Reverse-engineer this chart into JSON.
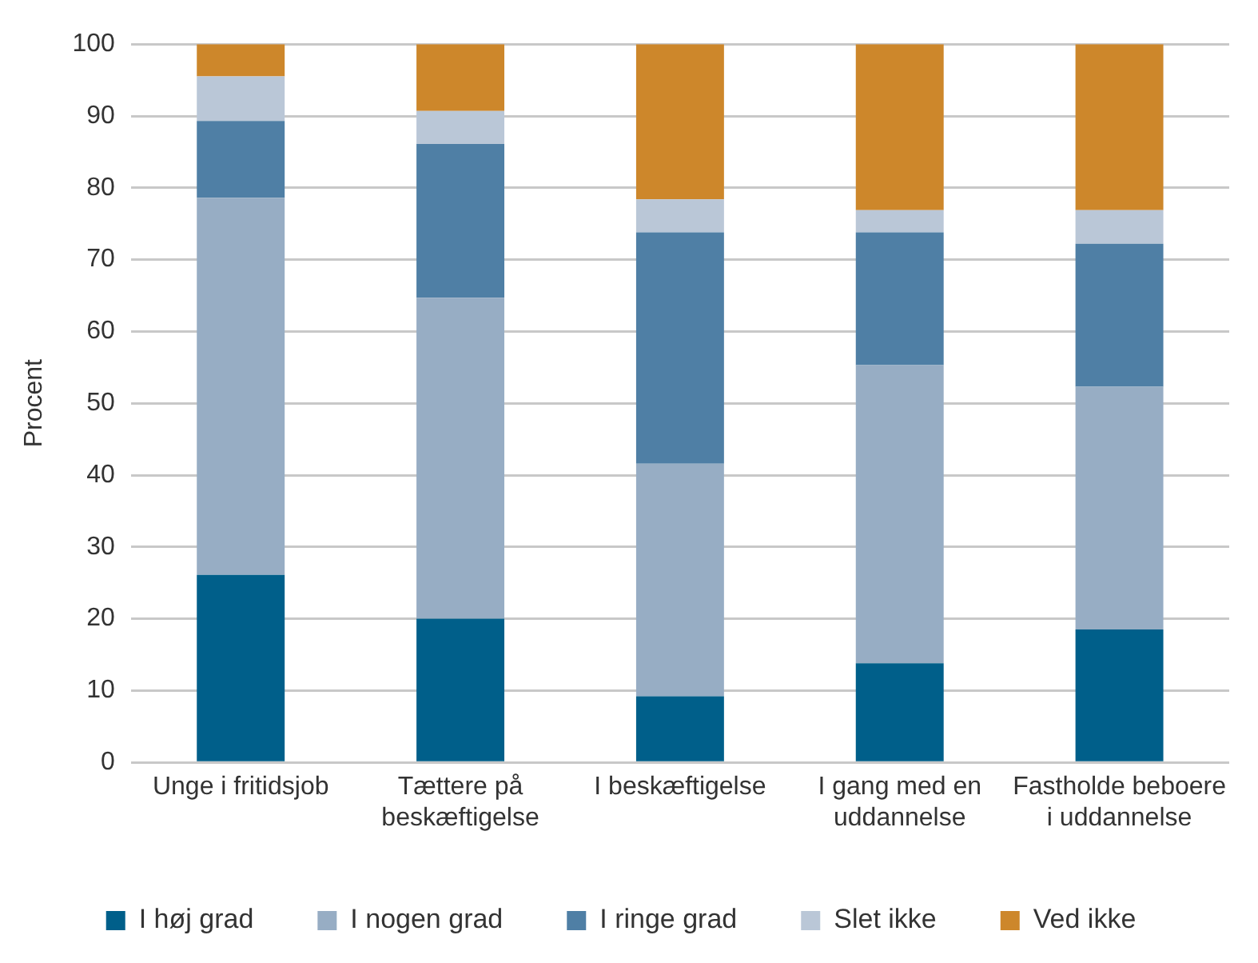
{
  "chart_data": {
    "type": "bar",
    "stacked": true,
    "ylabel": "Procent",
    "categories": [
      "Unge i fritidsjob",
      "Tættere på beskæftigelse",
      "I beskæftigelse",
      "I gang med en uddannelse",
      "Fastholde beboere i uddannelse"
    ],
    "series": [
      {
        "name": "I høj grad",
        "color": "#005f8a",
        "values": [
          26.1,
          20.0,
          9.2,
          13.8,
          18.5
        ]
      },
      {
        "name": "I nogen grad",
        "color": "#97adc4",
        "values": [
          52.5,
          44.7,
          32.4,
          41.5,
          33.8
        ]
      },
      {
        "name": "I ringe grad",
        "color": "#4f7fa5",
        "values": [
          10.7,
          21.4,
          32.2,
          18.5,
          19.9
        ]
      },
      {
        "name": "Slet ikke",
        "color": "#bac7d7",
        "values": [
          6.2,
          4.6,
          4.6,
          3.1,
          4.7
        ]
      },
      {
        "name": "Ved ikke",
        "color": "#cd872b",
        "values": [
          4.5,
          9.3,
          21.6,
          23.1,
          23.1
        ]
      }
    ],
    "ylim": [
      0,
      100
    ],
    "yticks": [
      0,
      10,
      20,
      30,
      40,
      50,
      60,
      70,
      80,
      90,
      100
    ],
    "grid": "y",
    "legend": "bottom"
  }
}
